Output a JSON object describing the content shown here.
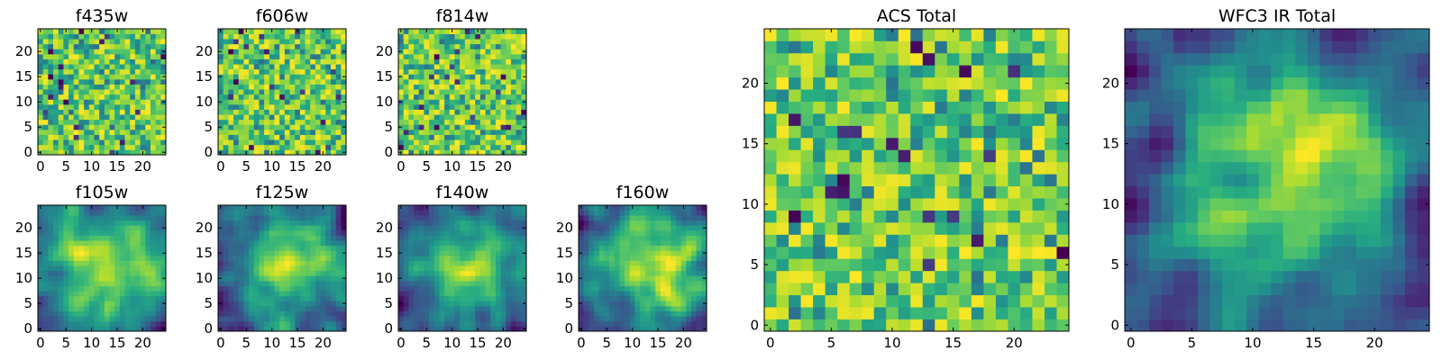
{
  "chart_data": [
    {
      "type": "heatmap",
      "title": "f435w",
      "grid_size": 25,
      "xlim": [
        0,
        24
      ],
      "ylim": [
        0,
        24
      ],
      "xticks": [
        "0",
        "5",
        "10",
        "15",
        "20"
      ],
      "yticks": [
        "0",
        "5",
        "10",
        "15",
        "20"
      ],
      "texture": "noise",
      "seed": 11,
      "colormap": "viridis"
    },
    {
      "type": "heatmap",
      "title": "f606w",
      "grid_size": 25,
      "xlim": [
        0,
        24
      ],
      "ylim": [
        0,
        24
      ],
      "xticks": [
        "0",
        "5",
        "10",
        "15",
        "20"
      ],
      "yticks": [
        "0",
        "5",
        "10",
        "15",
        "20"
      ],
      "texture": "noise",
      "seed": 23,
      "colormap": "viridis"
    },
    {
      "type": "heatmap",
      "title": "f814w",
      "grid_size": 25,
      "xlim": [
        0,
        24
      ],
      "ylim": [
        0,
        24
      ],
      "xticks": [
        "0",
        "5",
        "10",
        "15",
        "20"
      ],
      "yticks": [
        "0",
        "5",
        "10",
        "15",
        "20"
      ],
      "texture": "noise",
      "seed": 37,
      "colormap": "viridis"
    },
    {
      "type": "heatmap",
      "title": "f105w",
      "grid_size": 25,
      "xlim": [
        0,
        24
      ],
      "ylim": [
        0,
        24
      ],
      "xticks": [
        "0",
        "5",
        "10",
        "15",
        "20"
      ],
      "yticks": [
        "0",
        "5",
        "10",
        "15",
        "20"
      ],
      "texture": "smooth",
      "seed": 41,
      "colormap": "viridis"
    },
    {
      "type": "heatmap",
      "title": "f125w",
      "grid_size": 25,
      "xlim": [
        0,
        24
      ],
      "ylim": [
        0,
        24
      ],
      "xticks": [
        "0",
        "5",
        "10",
        "15",
        "20"
      ],
      "yticks": [
        "0",
        "5",
        "10",
        "15",
        "20"
      ],
      "texture": "smooth",
      "seed": 53,
      "colormap": "viridis"
    },
    {
      "type": "heatmap",
      "title": "f140w",
      "grid_size": 25,
      "xlim": [
        0,
        24
      ],
      "ylim": [
        0,
        24
      ],
      "xticks": [
        "0",
        "5",
        "10",
        "15",
        "20"
      ],
      "yticks": [
        "0",
        "5",
        "10",
        "15",
        "20"
      ],
      "texture": "smooth",
      "seed": 67,
      "colormap": "viridis"
    },
    {
      "type": "heatmap",
      "title": "f160w",
      "grid_size": 25,
      "xlim": [
        0,
        24
      ],
      "ylim": [
        0,
        24
      ],
      "xticks": [
        "0",
        "5",
        "10",
        "15",
        "20"
      ],
      "yticks": [
        "0",
        "5",
        "10",
        "15",
        "20"
      ],
      "texture": "smooth",
      "seed": 79,
      "colormap": "viridis"
    },
    {
      "type": "heatmap",
      "title": "ACS Total",
      "grid_size": 25,
      "xlim": [
        0,
        24
      ],
      "ylim": [
        0,
        24
      ],
      "xticks": [
        "0",
        "5",
        "10",
        "15",
        "20"
      ],
      "yticks": [
        "0",
        "5",
        "10",
        "15",
        "20"
      ],
      "texture": "noise",
      "seed": 97,
      "colormap": "viridis"
    },
    {
      "type": "heatmap",
      "title": "WFC3 IR Total",
      "grid_size": 25,
      "xlim": [
        0,
        24
      ],
      "ylim": [
        0,
        24
      ],
      "xticks": [
        "0",
        "5",
        "10",
        "15",
        "20"
      ],
      "yticks": [
        "0",
        "5",
        "10",
        "15",
        "20"
      ],
      "texture": "smooth",
      "seed": 113,
      "colormap": "viridis"
    }
  ]
}
